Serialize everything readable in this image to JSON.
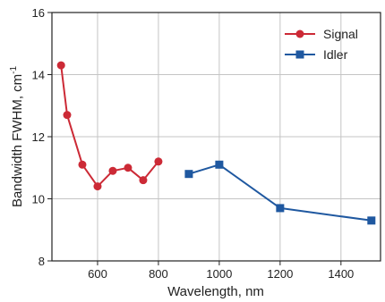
{
  "chart_data": {
    "type": "line",
    "title": "",
    "xlabel": "Wavelength, nm",
    "ylabel": "Bandwidth FWHM, cm",
    "ylabel_sup": "-1",
    "xlim": [
      450,
      1530
    ],
    "ylim": [
      8,
      16
    ],
    "xticks": [
      600,
      800,
      1000,
      1200,
      1400
    ],
    "yticks": [
      8,
      10,
      12,
      14,
      16
    ],
    "grid": true,
    "legend_position": "top-right",
    "series": [
      {
        "name": "Signal",
        "color": "#cc2a36",
        "marker": "circle",
        "x": [
          480,
          500,
          550,
          600,
          650,
          700,
          750,
          800
        ],
        "y": [
          14.3,
          12.7,
          11.1,
          10.4,
          10.9,
          11.0,
          10.6,
          11.2
        ]
      },
      {
        "name": "Idler",
        "color": "#1f58a0",
        "marker": "square",
        "x": [
          900,
          1000,
          1200,
          1500
        ],
        "y": [
          10.8,
          11.1,
          9.7,
          9.3
        ]
      }
    ]
  }
}
